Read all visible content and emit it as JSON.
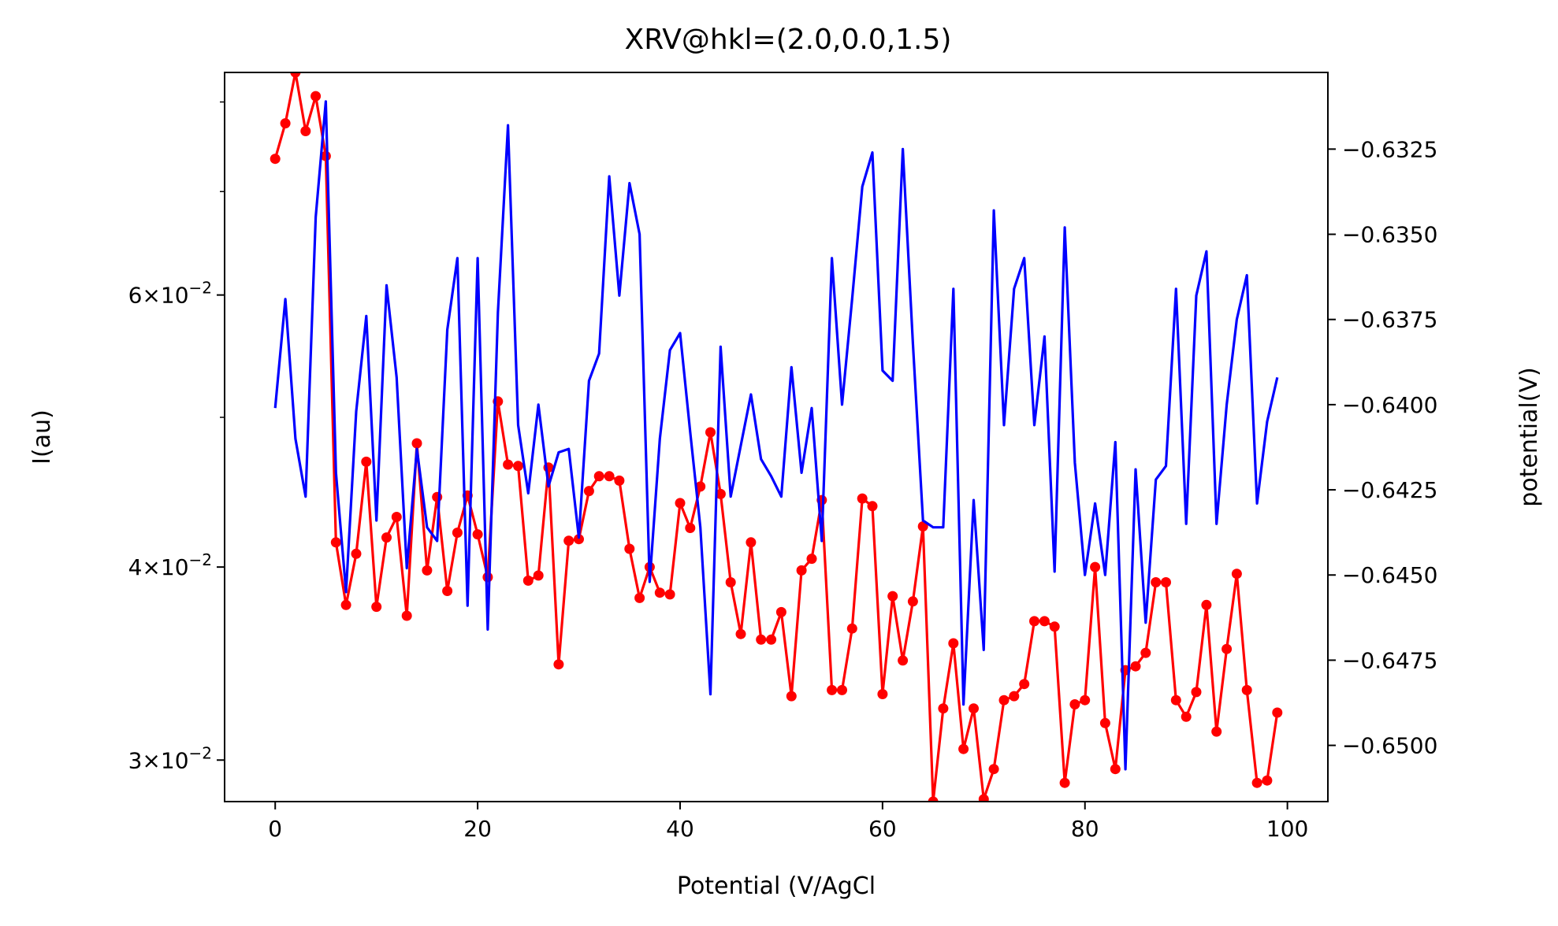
{
  "chart_data": {
    "type": "line",
    "title": "XRV@hkl=(2.0,0.0,1.5)",
    "xlabel": "Potential (V/AgCl",
    "ylabel_left": "I(au)",
    "ylabel_right": "potential(V)",
    "xlim": [
      -5,
      104
    ],
    "x_ticks": [
      0,
      20,
      40,
      60,
      80,
      100
    ],
    "x_tick_labels": [
      "0",
      "20",
      "40",
      "60",
      "80",
      "100"
    ],
    "left_axis": {
      "scale": "log",
      "ylim": [
        0.0282,
        0.0836
      ],
      "major_ticks": [
        {
          "value": 0.03,
          "mantissa": "3",
          "exponent": "−2"
        },
        {
          "value": 0.04,
          "mantissa": "4",
          "exponent": "−2"
        },
        {
          "value": 0.06,
          "mantissa": "6",
          "exponent": "−2"
        }
      ],
      "minor_ticks": [
        0.05,
        0.07,
        0.08
      ]
    },
    "right_axis": {
      "scale": "linear",
      "ylim": [
        -0.65165,
        -0.63025
      ],
      "ticks": [
        -0.6325,
        -0.635,
        -0.6375,
        -0.64,
        -0.6425,
        -0.645,
        -0.6475,
        -0.65
      ],
      "tick_labels": [
        "−0.6325",
        "−0.6350",
        "−0.6375",
        "−0.6400",
        "−0.6425",
        "−0.6450",
        "−0.6475",
        "−0.6500"
      ]
    },
    "series": [
      {
        "axis": "left",
        "color": "#ff0000",
        "markers": true,
        "values": [
          0.0735,
          0.0775,
          0.0836,
          0.0766,
          0.0807,
          0.0738,
          0.0415,
          0.0378,
          0.0408,
          0.0468,
          0.0377,
          0.0418,
          0.0431,
          0.0372,
          0.0481,
          0.0398,
          0.0444,
          0.0386,
          0.0421,
          0.0445,
          0.042,
          0.0394,
          0.0512,
          0.0466,
          0.0465,
          0.0392,
          0.0395,
          0.0464,
          0.0346,
          0.0416,
          0.0417,
          0.0448,
          0.0458,
          0.0458,
          0.0455,
          0.0411,
          0.0382,
          0.04,
          0.0385,
          0.0384,
          0.044,
          0.0424,
          0.0451,
          0.0489,
          0.0446,
          0.0391,
          0.0362,
          0.0415,
          0.0359,
          0.0359,
          0.0374,
          0.033,
          0.0398,
          0.0405,
          0.0442,
          0.0333,
          0.0333,
          0.0365,
          0.0443,
          0.0438,
          0.0331,
          0.0383,
          0.0348,
          0.038,
          0.0425,
          0.0282,
          0.0324,
          0.0357,
          0.0305,
          0.0324,
          0.0283,
          0.0296,
          0.0328,
          0.033,
          0.0336,
          0.0369,
          0.0369,
          0.0366,
          0.029,
          0.0326,
          0.0328,
          0.04,
          0.0317,
          0.0296,
          0.0343,
          0.0345,
          0.0352,
          0.0391,
          0.0391,
          0.0328,
          0.032,
          0.0332,
          0.0378,
          0.0313,
          0.0354,
          0.0396,
          0.0333,
          0.029,
          0.0291,
          0.0322
        ]
      },
      {
        "axis": "right",
        "color": "#0000ff",
        "markers": false,
        "values": [
          -0.6401,
          -0.6369,
          -0.641,
          -0.6427,
          -0.6345,
          -0.6311,
          -0.642,
          -0.6455,
          -0.6402,
          -0.6374,
          -0.6434,
          -0.6365,
          -0.6392,
          -0.6448,
          -0.6413,
          -0.6436,
          -0.644,
          -0.6378,
          -0.6357,
          -0.6459,
          -0.6357,
          -0.6466,
          -0.6373,
          -0.6318,
          -0.6406,
          -0.6426,
          -0.64,
          -0.6424,
          -0.6414,
          -0.6413,
          -0.6439,
          -0.6393,
          -0.6385,
          -0.6333,
          -0.6368,
          -0.6335,
          -0.635,
          -0.6452,
          -0.641,
          -0.6384,
          -0.6379,
          -0.6408,
          -0.6436,
          -0.6485,
          -0.6383,
          -0.6427,
          -0.6412,
          -0.6397,
          -0.6416,
          -0.6421,
          -0.6427,
          -0.6389,
          -0.642,
          -0.6401,
          -0.644,
          -0.6357,
          -0.64,
          -0.6369,
          -0.6336,
          -0.6326,
          -0.639,
          -0.6393,
          -0.6325,
          -0.6382,
          -0.6434,
          -0.6436,
          -0.6436,
          -0.6366,
          -0.6488,
          -0.6428,
          -0.6472,
          -0.6343,
          -0.6406,
          -0.6366,
          -0.6357,
          -0.6406,
          -0.638,
          -0.6449,
          -0.6348,
          -0.6417,
          -0.645,
          -0.6429,
          -0.645,
          -0.6411,
          -0.6507,
          -0.6419,
          -0.6464,
          -0.6422,
          -0.6418,
          -0.6366,
          -0.6435,
          -0.6368,
          -0.6355,
          -0.6435,
          -0.64,
          -0.6375,
          -0.6362,
          -0.6429,
          -0.6405,
          -0.6392
        ]
      }
    ]
  }
}
